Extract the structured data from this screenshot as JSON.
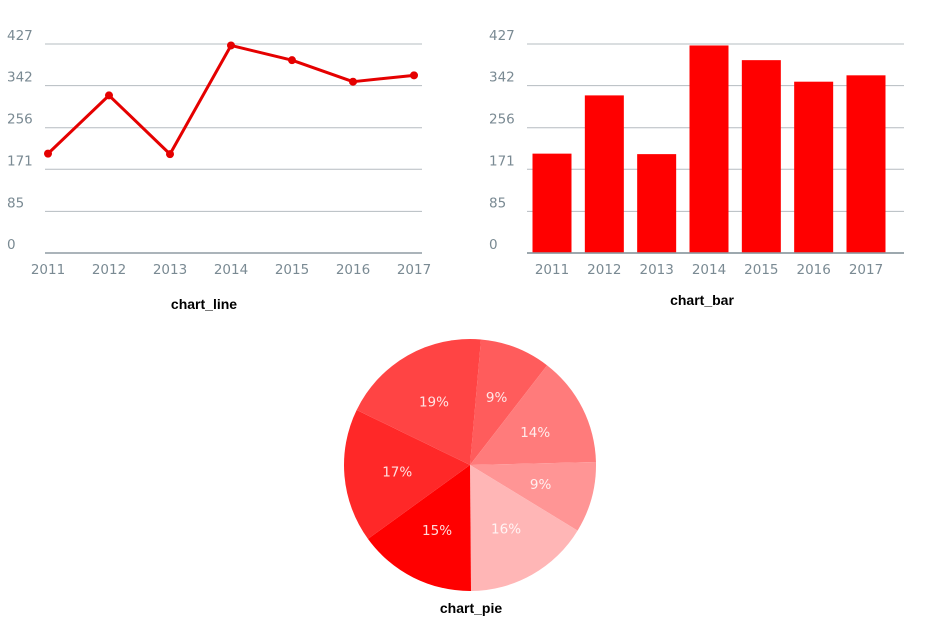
{
  "chart_data": [
    {
      "type": "line",
      "title": "chart_line",
      "categories": [
        "2011",
        "2012",
        "2013",
        "2014",
        "2015",
        "2016",
        "2017"
      ],
      "values": [
        203,
        322,
        202,
        424,
        394,
        350,
        363
      ],
      "yticks": [
        "0",
        "85",
        "171",
        "256",
        "342",
        "427"
      ],
      "ylim": [
        0,
        427
      ],
      "grid": true,
      "color": "#e50000"
    },
    {
      "type": "bar",
      "title": "chart_bar",
      "categories": [
        "2011",
        "2012",
        "2013",
        "2014",
        "2015",
        "2016",
        "2017"
      ],
      "values": [
        203,
        322,
        202,
        424,
        394,
        350,
        363
      ],
      "yticks": [
        "0",
        "85",
        "171",
        "256",
        "342",
        "427"
      ],
      "ylim": [
        0,
        427
      ],
      "grid": true,
      "color": "#ff0000"
    },
    {
      "type": "pie",
      "title": "chart_pie",
      "slices": [
        {
          "label": "9%",
          "value": 9,
          "color": "#ff5c5c"
        },
        {
          "label": "14%",
          "value": 14,
          "color": "#ff7b7b"
        },
        {
          "label": "9%",
          "value": 9,
          "color": "#ff9595"
        },
        {
          "label": "16%",
          "value": 16,
          "color": "#ffb6b6"
        },
        {
          "label": "15%",
          "value": 15,
          "color": "#ff0000"
        },
        {
          "label": "17%",
          "value": 17,
          "color": "#ff2828"
        },
        {
          "label": "19%",
          "value": 19,
          "color": "#ff4444"
        }
      ]
    }
  ]
}
